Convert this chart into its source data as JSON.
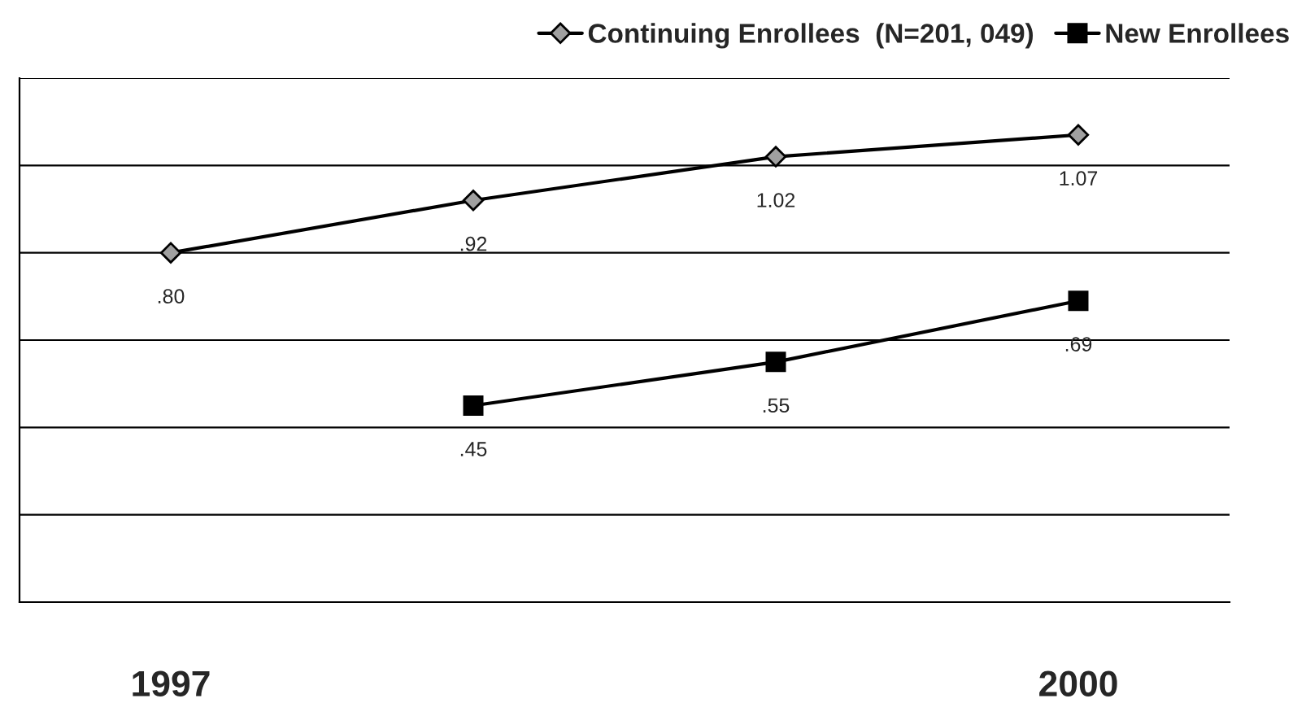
{
  "chart_data": {
    "type": "line",
    "categories": [
      "1997",
      null,
      null,
      "2000"
    ],
    "series": [
      {
        "name": "Continuing Enrollees  (N=201, 049)",
        "color": "#000000",
        "marker": "diamond",
        "values": [
          0.8,
          0.92,
          1.02,
          1.07
        ],
        "value_labels": [
          ".80",
          ".92",
          "1.02",
          "1.07"
        ]
      },
      {
        "name": "New Enrollees",
        "color": "#000000",
        "marker": "square",
        "values": [
          null,
          0.45,
          0.55,
          0.69
        ],
        "value_labels": [
          null,
          ".45",
          ".55",
          ".69"
        ]
      }
    ],
    "ylim": [
      0,
      1.2
    ],
    "yticks": [
      {
        "value": 0,
        "label": null
      },
      {
        "value": 0.2,
        "label": null
      },
      {
        "value": 0.4,
        "label": null
      },
      {
        "value": 0.6,
        "label": null
      },
      {
        "value": 0.8,
        "label": null
      },
      {
        "value": 1.0,
        "label": null
      },
      {
        "value": 1.2,
        "label": null
      }
    ],
    "grid": "y",
    "legend": "top right",
    "line_style": "solid"
  }
}
